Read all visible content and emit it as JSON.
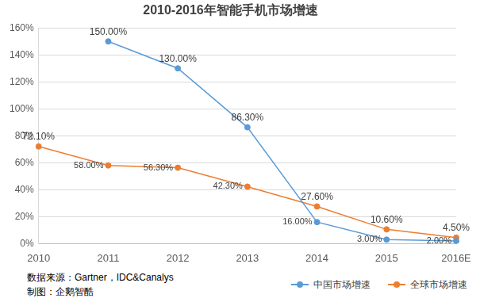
{
  "chart_data": {
    "type": "line",
    "title": "2010-2016年智能手机市场增速",
    "categories": [
      "2010",
      "2011",
      "2012",
      "2013",
      "2014",
      "2015",
      "2016E"
    ],
    "series": [
      {
        "name": "中国市场增速",
        "color": "#5b9bd5",
        "marker": "circle",
        "values": [
          null,
          150,
          130,
          86.3,
          16,
          3,
          2
        ],
        "value_labels": [
          null,
          "150.00%",
          "130.00%",
          "86.30%",
          "16.00%",
          "3.00%",
          "2.00%"
        ]
      },
      {
        "name": "全球市场增速",
        "color": "#ed7d31",
        "marker": "circle",
        "values": [
          72.1,
          58,
          56.3,
          42.3,
          27.6,
          10.6,
          4.5
        ],
        "value_labels": [
          "72.10%",
          "58.00%",
          "56.30%",
          "42.30%",
          "27.60%",
          "10.60%",
          "4.50%"
        ]
      }
    ],
    "ylim": [
      0,
      160
    ],
    "yticks": [
      {
        "value": 0,
        "label": "0%"
      },
      {
        "value": 20,
        "label": "20%"
      },
      {
        "value": 40,
        "label": "40%"
      },
      {
        "value": 60,
        "label": "60%"
      },
      {
        "value": 80,
        "label": "80%"
      },
      {
        "value": 100,
        "label": "100%"
      },
      {
        "value": 120,
        "label": "120%"
      },
      {
        "value": 140,
        "label": "140%"
      },
      {
        "value": 160,
        "label": "160%"
      }
    ],
    "grid": true,
    "data_labels": true,
    "legend": "bottom-right",
    "annotations": [
      "数据来源：Gartner，IDC&Canalys",
      "制图：企鹅智酷"
    ]
  }
}
